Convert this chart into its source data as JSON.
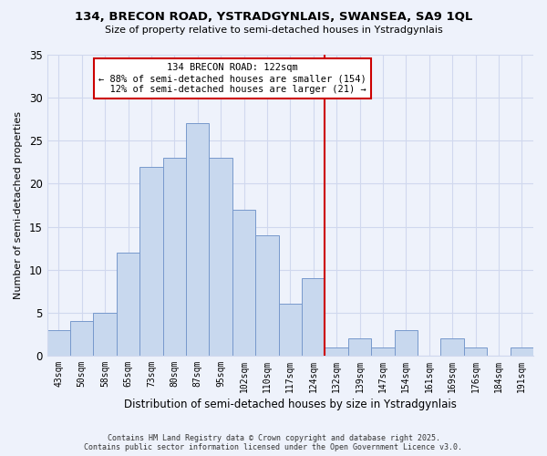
{
  "title_line1": "134, BRECON ROAD, YSTRADGYNLAIS, SWANSEA, SA9 1QL",
  "title_line2": "Size of property relative to semi-detached houses in Ystradgynlais",
  "xlabel": "Distribution of semi-detached houses by size in Ystradgynlais",
  "ylabel": "Number of semi-detached properties",
  "bar_labels": [
    "43sqm",
    "50sqm",
    "58sqm",
    "65sqm",
    "73sqm",
    "80sqm",
    "87sqm",
    "95sqm",
    "102sqm",
    "110sqm",
    "117sqm",
    "124sqm",
    "132sqm",
    "139sqm",
    "147sqm",
    "154sqm",
    "161sqm",
    "169sqm",
    "176sqm",
    "184sqm",
    "191sqm"
  ],
  "bar_values": [
    3,
    4,
    5,
    12,
    22,
    23,
    27,
    23,
    17,
    14,
    6,
    9,
    1,
    2,
    1,
    3,
    0,
    2,
    1,
    0,
    1
  ],
  "bar_color": "#c8d8ee",
  "bar_edge_color": "#7799cc",
  "reference_line_x": 11.5,
  "reference_label": "134 BRECON ROAD: 122sqm",
  "smaller_pct": 88,
  "smaller_count": 154,
  "larger_pct": 12,
  "larger_count": 21,
  "ylim": [
    0,
    35
  ],
  "yticks": [
    0,
    5,
    10,
    15,
    20,
    25,
    30,
    35
  ],
  "background_color": "#eef2fb",
  "grid_color": "#d0d8ee",
  "annotation_box_color": "#ffffff",
  "annotation_box_edge": "#cc0000",
  "ref_line_color": "#cc0000",
  "footer_line1": "Contains HM Land Registry data © Crown copyright and database right 2025.",
  "footer_line2": "Contains public sector information licensed under the Open Government Licence v3.0."
}
